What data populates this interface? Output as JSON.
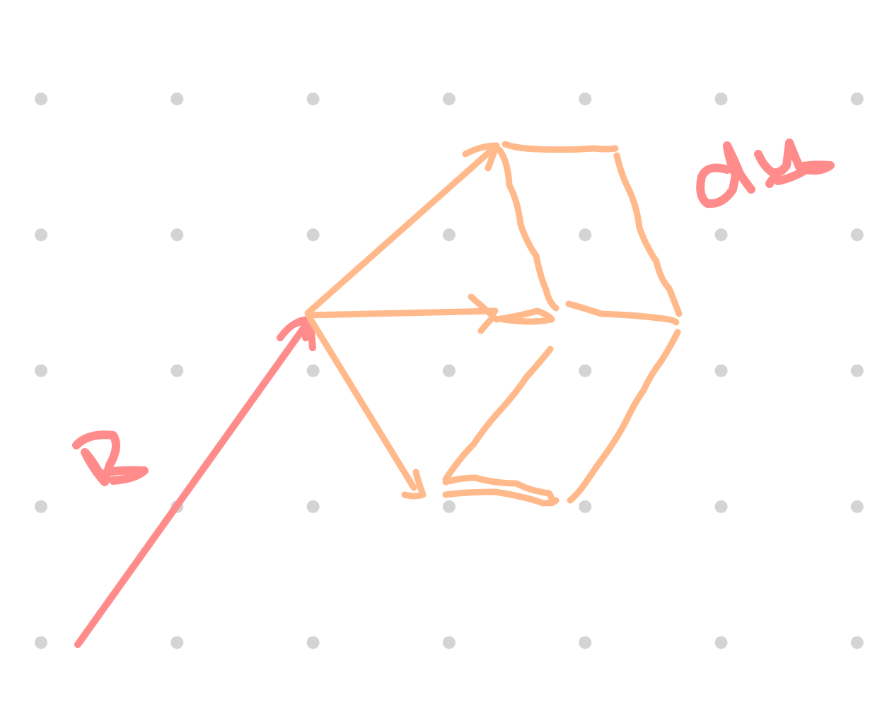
{
  "labels": {
    "vector_label": "r",
    "volume_label": "du"
  },
  "colors": {
    "background": "#ffffff",
    "grid_dot": "#d4d4d4",
    "position_vector": "#ff8b8b",
    "volume_element": "#ffb98a"
  },
  "grid": {
    "columns": 7,
    "rows": 5
  }
}
